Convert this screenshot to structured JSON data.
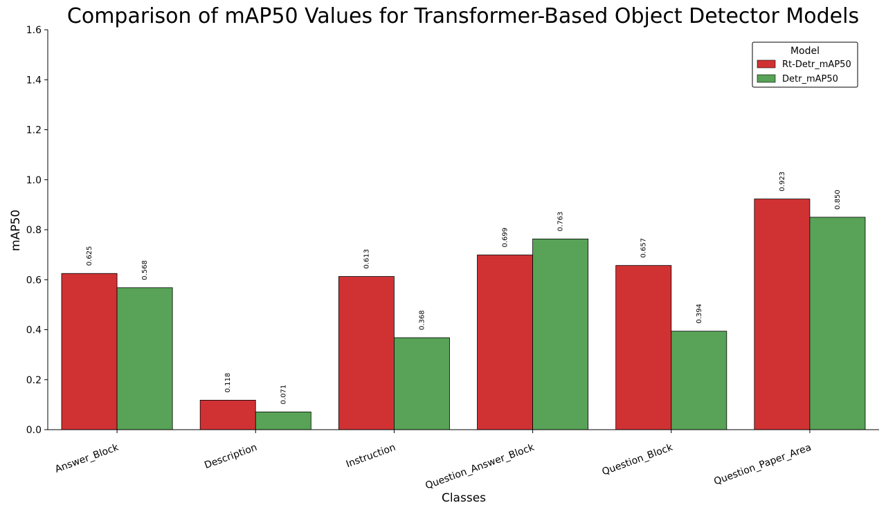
{
  "chart_data": {
    "type": "bar",
    "title": "Comparison of mAP50 Values for Transformer-Based Object Detector Models",
    "xlabel": "Classes",
    "ylabel": "mAP50",
    "ylim": [
      0,
      1.6
    ],
    "yticks": [
      "0.0",
      "0.2",
      "0.4",
      "0.6",
      "0.8",
      "1.0",
      "1.2",
      "1.4",
      "1.6"
    ],
    "categories": [
      "Answer_Block",
      "Description",
      "Instruction",
      "Question_Answer_Block",
      "Question_Block",
      "Question_Paper_Area"
    ],
    "series": [
      {
        "name": "Rt-Detr_mAP50",
        "color": "#d03234",
        "values": [
          0.625,
          0.118,
          0.613,
          0.699,
          0.657,
          0.923
        ],
        "labels": [
          "0.625",
          "0.118",
          "0.613",
          "0.699",
          "0.657",
          "0.923"
        ]
      },
      {
        "name": "Detr_mAP50",
        "color": "#58a357",
        "values": [
          0.568,
          0.071,
          0.368,
          0.763,
          0.394,
          0.85
        ],
        "labels": [
          "0.568",
          "0.071",
          "0.368",
          "0.763",
          "0.394",
          "0.850"
        ]
      }
    ],
    "legend": {
      "title": "Model",
      "position": "top-right"
    },
    "grid": false
  }
}
